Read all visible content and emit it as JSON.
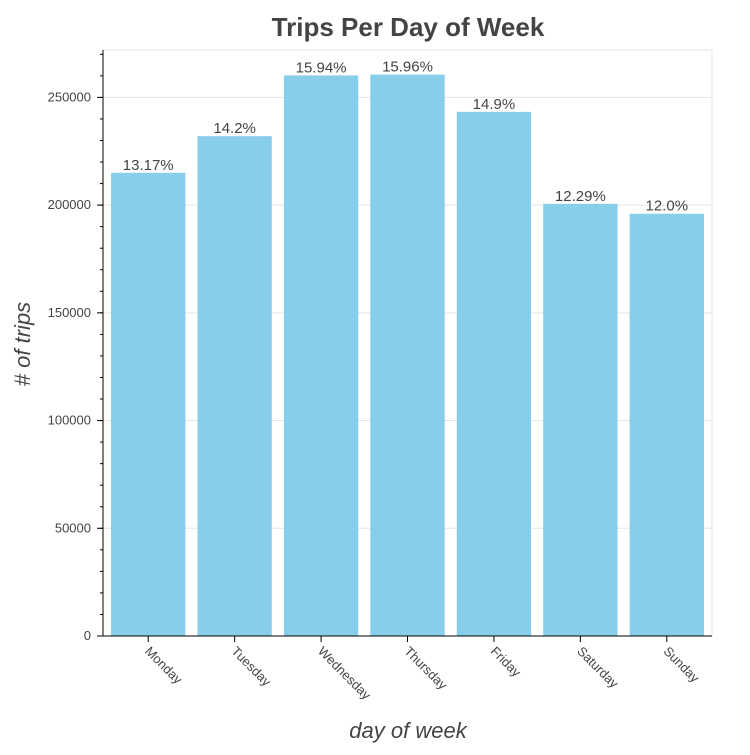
{
  "chart_data": {
    "type": "bar",
    "title": "Trips Per Day of Week",
    "xlabel": "day of week",
    "ylabel": "# of trips",
    "categories": [
      "Monday",
      "Tuesday",
      "Wednesday",
      "Thursday",
      "Friday",
      "Saturday",
      "Sunday"
    ],
    "values": [
      215000,
      232000,
      260200,
      260600,
      243300,
      200600,
      196000
    ],
    "data_labels": [
      "13.17%",
      "14.2%",
      "15.94%",
      "15.96%",
      "14.9%",
      "12.29%",
      "12.0%"
    ],
    "ylim": [
      0,
      272000
    ],
    "yticks": [
      0,
      50000,
      100000,
      150000,
      200000,
      250000
    ],
    "ytick_labels": [
      "0",
      "50000",
      "100000",
      "150000",
      "200000",
      "250000"
    ],
    "grid": true,
    "bar_color": "#87ceeb"
  }
}
